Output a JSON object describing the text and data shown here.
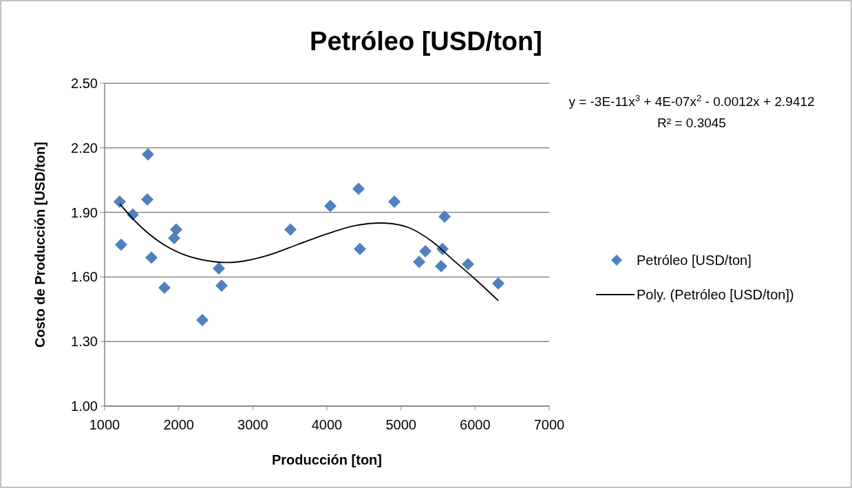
{
  "chart_data": {
    "type": "scatter",
    "title": "Petróleo [USD/ton]",
    "xlabel": "Producción [ton]",
    "ylabel": "Costo de Producción [USD/ton]",
    "xlim": [
      1000,
      7000
    ],
    "xticks": [
      1000,
      2000,
      3000,
      4000,
      5000,
      6000,
      7000
    ],
    "ylim": [
      1.0,
      2.5
    ],
    "yticks": [
      {
        "value": 1.0,
        "label": "1.00"
      },
      {
        "value": 1.3,
        "label": "1.30"
      },
      {
        "value": 1.6,
        "label": "1.60"
      },
      {
        "value": 1.9,
        "label": "1.90"
      },
      {
        "value": 2.2,
        "label": "2.20"
      },
      {
        "value": 2.5,
        "label": "2.50"
      }
    ],
    "grid": "y",
    "legend": "right",
    "annotations": [
      "y = -3E-11x$^{3}$ + 4E-07x$^{2}$ - 0.0012x + 2.9412",
      "R² = 0.3045"
    ],
    "series": [
      {
        "name": "Petróleo [USD/ton]",
        "marker": "diamond",
        "color": "#4f81bd",
        "x": [
          1204,
          1223,
          1381,
          1585,
          1576,
          1632,
          1808,
          1938,
          1966,
          2319,
          2542,
          2579,
          3508,
          4046,
          4427,
          4446,
          4910,
          5245,
          5329,
          5542,
          5560,
          5588,
          5904,
          6313
        ],
        "values": [
          1.95,
          1.75,
          1.89,
          2.17,
          1.96,
          1.69,
          1.55,
          1.78,
          1.82,
          1.4,
          1.64,
          1.56,
          1.82,
          1.93,
          2.01,
          1.73,
          1.95,
          1.67,
          1.72,
          1.65,
          1.73,
          1.88,
          1.66,
          1.57
        ]
      },
      {
        "name": "Poly. (Petróleo [USD/ton])",
        "type": "line",
        "marker": "none",
        "color": "#000000",
        "x": [
          1204,
          1500,
          1800,
          2100,
          2500,
          2800,
          3200,
          3600,
          4000,
          4400,
          4800,
          5100,
          5400,
          5700,
          6000,
          6313
        ],
        "values": [
          1.94,
          1.83,
          1.75,
          1.7,
          1.67,
          1.67,
          1.7,
          1.75,
          1.8,
          1.84,
          1.85,
          1.83,
          1.77,
          1.68,
          1.59,
          1.49
        ]
      }
    ]
  }
}
